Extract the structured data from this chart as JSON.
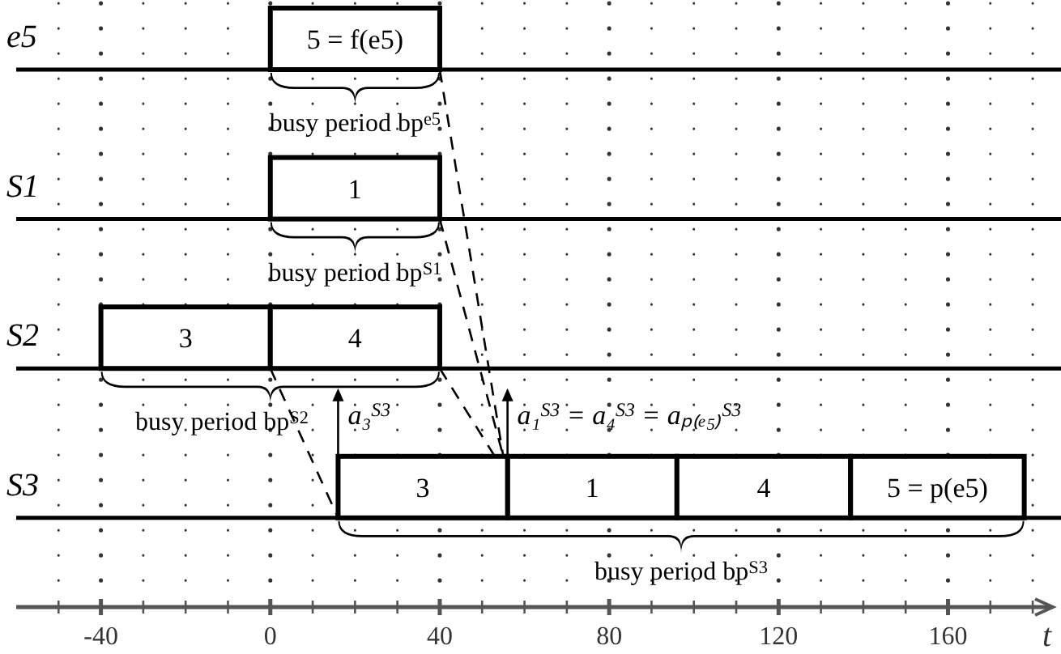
{
  "chart_data": {
    "type": "bar",
    "orientation": "horizontal",
    "categories": [
      "e5",
      "S1",
      "S2",
      "S3"
    ],
    "series": [
      {
        "name": "5 = f(e5)",
        "color": "#ffffff",
        "base": [
          0,
          null,
          null,
          null
        ],
        "values": [
          40,
          null,
          null,
          null
        ]
      },
      {
        "name": "1",
        "color": "#ffffff",
        "base": [
          null,
          0,
          null,
          56
        ],
        "values": [
          null,
          40,
          null,
          40
        ]
      },
      {
        "name": "3",
        "color": "#ffffff",
        "base": [
          null,
          null,
          -40,
          16
        ],
        "values": [
          null,
          null,
          40,
          40
        ]
      },
      {
        "name": "4",
        "color": "#ffffff",
        "base": [
          null,
          null,
          0,
          96
        ],
        "values": [
          null,
          null,
          40,
          41
        ]
      },
      {
        "name": "5 = p(e5)",
        "color": "#ffffff",
        "base": [
          null,
          null,
          null,
          137
        ],
        "values": [
          null,
          null,
          null,
          41
        ]
      }
    ],
    "xlabel": "t",
    "xlim": [
      -60,
      184
    ],
    "xticks": [
      {
        "value": -50,
        "label": null
      },
      -40,
      {
        "value": -30,
        "label": null
      },
      {
        "value": -20,
        "label": null
      },
      {
        "value": -10,
        "label": null
      },
      0,
      {
        "value": 10,
        "label": null
      },
      {
        "value": 20,
        "label": null
      },
      {
        "value": 30,
        "label": null
      },
      40,
      {
        "value": 50,
        "label": null
      },
      {
        "value": 60,
        "label": null
      },
      {
        "value": 70,
        "label": null
      },
      80,
      {
        "value": 90,
        "label": null
      },
      {
        "value": 100,
        "label": null
      },
      {
        "value": 110,
        "label": null
      },
      120,
      {
        "value": 130,
        "label": null
      },
      {
        "value": 140,
        "label": null
      },
      {
        "value": 150,
        "label": null
      },
      160,
      {
        "value": 170,
        "label": null
      },
      {
        "value": 180,
        "label": null
      }
    ],
    "grid": "x",
    "annotations": [
      "busy period bp$^{e5}$",
      "busy period bp$^{S1}$",
      "busy period bp$^{S2}$",
      "busy period bp$^{S3}$",
      {
        "text": "a₃$^{S3}$",
        "x": 16,
        "y": "S3"
      },
      {
        "text": "a₁$^{S3}$ = a₄$^{S3}$ = aₚ₍ₑ₅₎$^{S3}$",
        "x": 56,
        "y": "S3"
      }
    ]
  }
}
